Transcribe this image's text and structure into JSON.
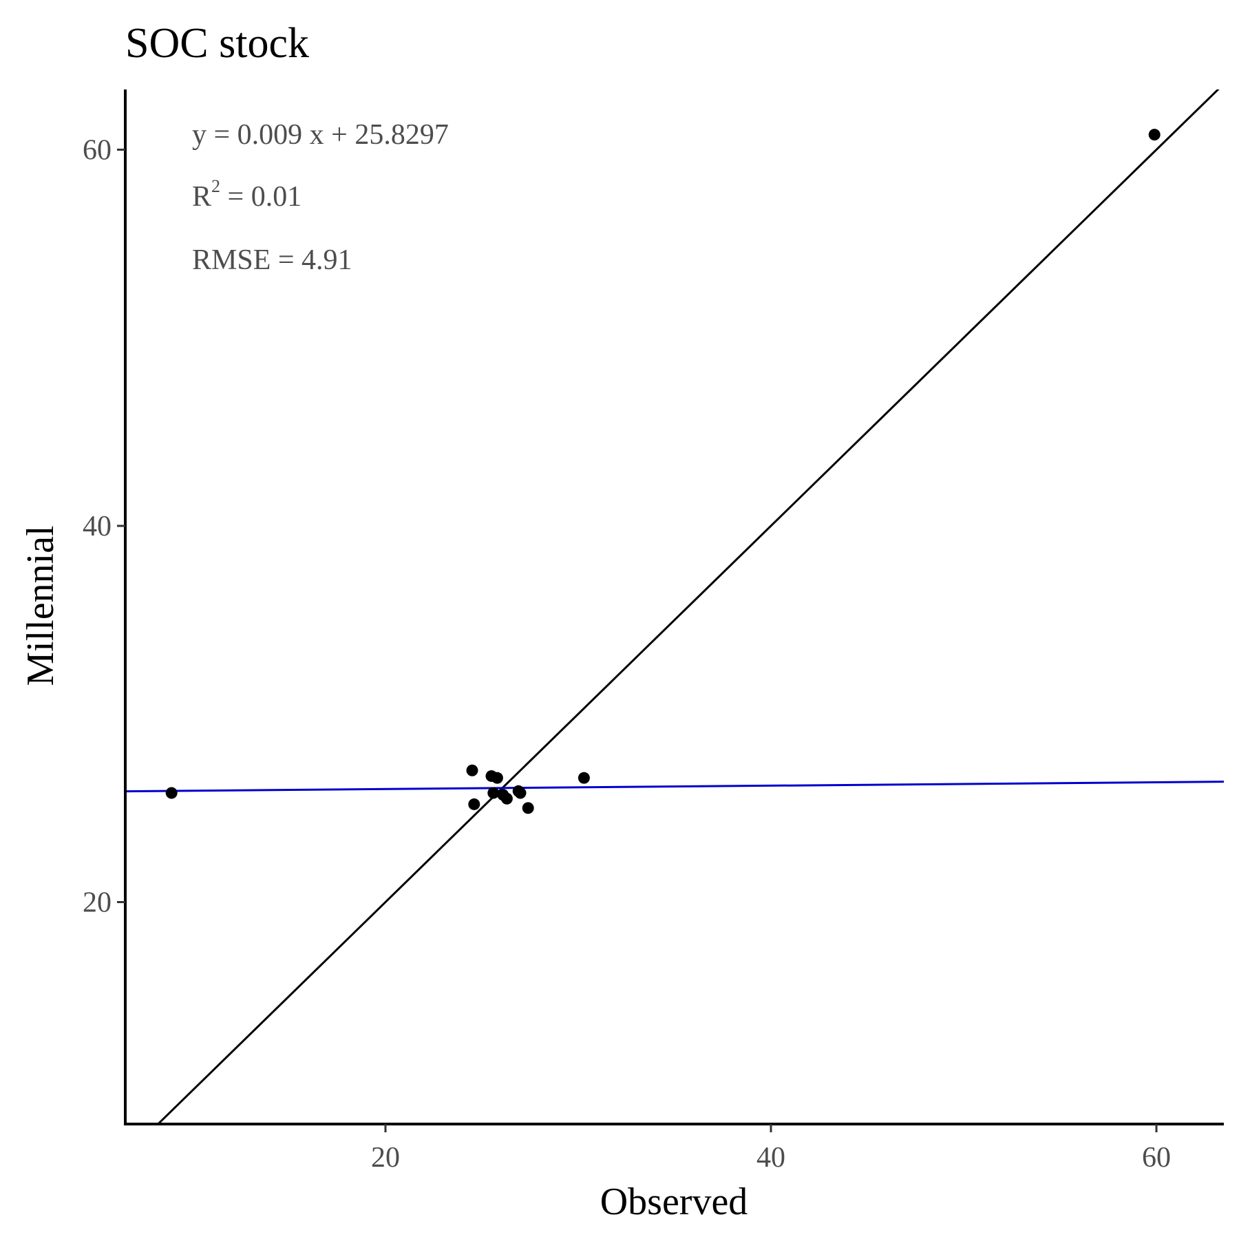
{
  "chart_data": {
    "type": "scatter",
    "title": "SOC stock",
    "xlabel": "Observed",
    "ylabel": "Millennial",
    "xlim": [
      6.5,
      63.5
    ],
    "ylim": [
      8.2,
      63.2
    ],
    "x_ticks": [
      20,
      40,
      60
    ],
    "y_ticks": [
      20,
      40,
      60
    ],
    "grid": false,
    "points": [
      {
        "x": 8.9,
        "y": 25.8
      },
      {
        "x": 24.5,
        "y": 27.0
      },
      {
        "x": 24.6,
        "y": 25.2
      },
      {
        "x": 25.5,
        "y": 26.7
      },
      {
        "x": 25.8,
        "y": 26.6
      },
      {
        "x": 25.6,
        "y": 25.8
      },
      {
        "x": 26.1,
        "y": 25.7
      },
      {
        "x": 26.3,
        "y": 25.5
      },
      {
        "x": 26.9,
        "y": 25.9
      },
      {
        "x": 27.0,
        "y": 25.8
      },
      {
        "x": 27.4,
        "y": 25.0
      },
      {
        "x": 30.3,
        "y": 26.6
      },
      {
        "x": 59.9,
        "y": 60.8
      }
    ],
    "identity_line": {
      "slope": 1,
      "intercept": 0,
      "color": "#000000"
    },
    "fit_line": {
      "slope": 0.009,
      "intercept": 25.8297,
      "color": "#0000cd"
    },
    "annotations": {
      "equation": "y = 0.009 x +  25.8297",
      "r2_label": "R",
      "r2_sup": "2",
      "r2_value": " = 0.01",
      "rmse": "RMSE = 4.91"
    }
  }
}
